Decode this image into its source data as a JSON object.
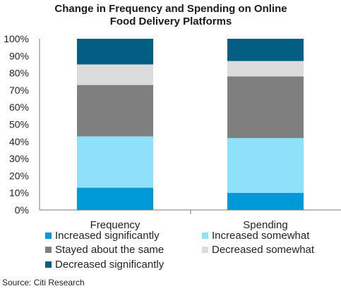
{
  "chart_data": {
    "type": "bar",
    "stacked": true,
    "title": [
      "Change in Frequency and Spending on Online",
      "Food Delivery Platforms"
    ],
    "categories": [
      "Frequency",
      "Spending"
    ],
    "series": [
      {
        "name": "Increased significantly",
        "color": "#0099d8",
        "values": [
          13,
          10
        ]
      },
      {
        "name": "Increased somewhat",
        "color": "#8fe0fb",
        "values": [
          30,
          32
        ]
      },
      {
        "name": "Stayed about the same",
        "color": "#7f7f7f",
        "values": [
          30,
          36
        ]
      },
      {
        "name": "Decreased somewhat",
        "color": "#dcdcdc",
        "values": [
          12,
          9
        ]
      },
      {
        "name": "Decreased significantly",
        "color": "#005f82",
        "values": [
          15,
          13
        ]
      }
    ],
    "yticks": [
      "0%",
      "10%",
      "20%",
      "30%",
      "40%",
      "50%",
      "60%",
      "70%",
      "80%",
      "90%",
      "100%"
    ],
    "ylim": [
      0,
      100
    ],
    "legend_position": "bottom",
    "grid": false
  },
  "source": "Source: Citi Research"
}
